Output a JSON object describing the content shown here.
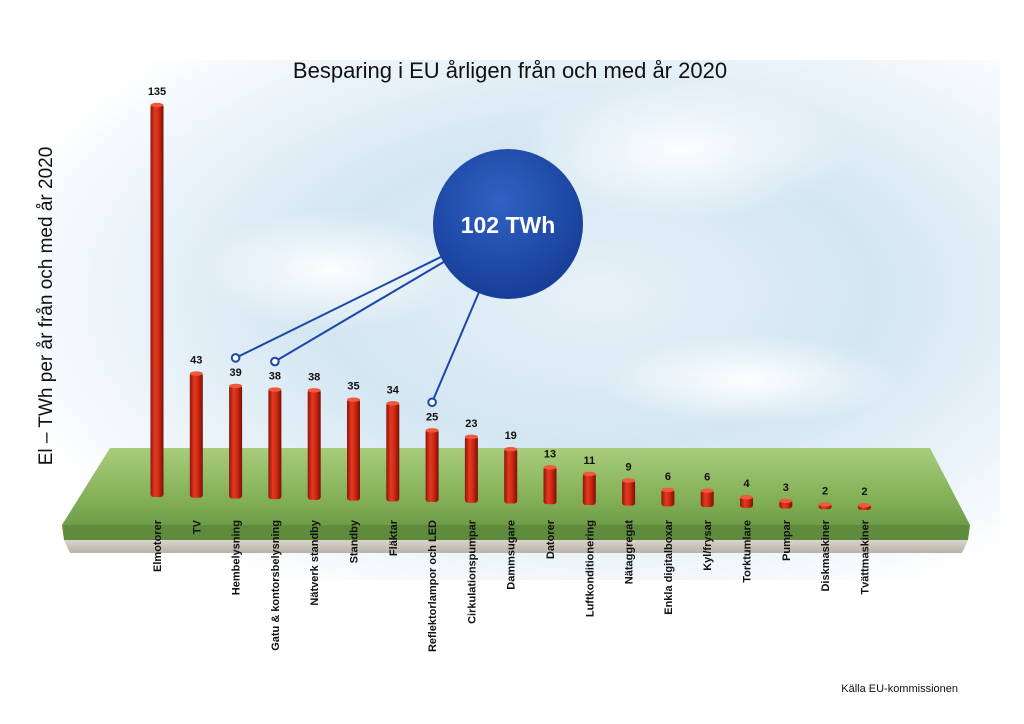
{
  "chart_data": {
    "type": "bar",
    "title": "Besparing i EU årligen från och med år 2020",
    "ylabel": "El – TWh per år från och med år 2020",
    "xlabel": "",
    "categories": [
      "Elmotorer",
      "TV",
      "Hembelysning",
      "Gatu & kontorsbelysning",
      "Nätverk standby",
      "Standby",
      "Fläktar",
      "Reflektorlampor och LED",
      "Cirkulationspumpar",
      "Dammsugare",
      "Datorer",
      "Luftkonditionering",
      "Nätaggregat",
      "Enkla digitalboxar",
      "Kyl/frysar",
      "Torktumlare",
      "Pumpar",
      "Diskmaskiner",
      "Tvättmaskiner"
    ],
    "values": [
      135,
      43,
      39,
      38,
      38,
      35,
      34,
      25,
      23,
      19,
      13,
      11,
      9,
      6,
      6,
      4,
      3,
      2,
      2
    ],
    "ylim": [
      0,
      135
    ],
    "bar_color": "#d42a14",
    "callout": {
      "text": "102 TWh",
      "color": "#1c47a8",
      "linked_categories": [
        "Hembelysning",
        "Gatu & kontorsbelysning",
        "Reflektorlampor och LED"
      ]
    },
    "grid": false,
    "source": "Källa EU-kommissionen"
  }
}
